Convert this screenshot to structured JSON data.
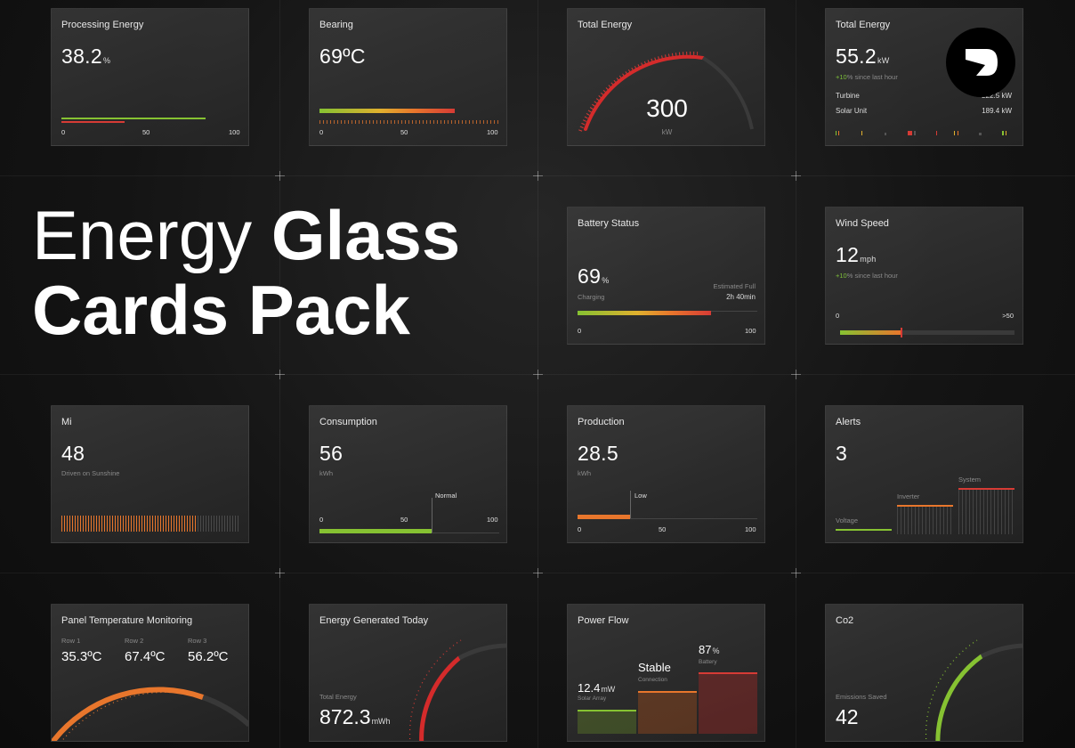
{
  "hero": {
    "line1_thin": "Energy",
    "line1_bold": "Glass",
    "line2": "Cards Pack"
  },
  "colors": {
    "green": "#86c232",
    "orange": "#e8762c",
    "red": "#d63b35",
    "bg": "#101010"
  },
  "processing_energy": {
    "title": "Processing Energy",
    "value": "38.2",
    "unit": "%",
    "level": 0.382,
    "ticks": [
      "0",
      "50",
      "100"
    ]
  },
  "bearing": {
    "title": "Bearing",
    "value": "69ºC",
    "ticks": [
      "0",
      "50",
      "100"
    ]
  },
  "total_energy_gauge": {
    "title": "Total Energy",
    "value": "300",
    "unit": "kW"
  },
  "total_energy": {
    "title": "Total Energy",
    "value": "55.2",
    "unit": "kW",
    "delta": "+10",
    "delta_text": "% since last hour",
    "rows": [
      {
        "label": "Turbine",
        "value": "222.5 kW"
      },
      {
        "label": "Solar Unit",
        "value": "189.4 kW"
      }
    ]
  },
  "battery": {
    "title": "Battery Status",
    "value": "69",
    "unit": "%",
    "status": "Charging",
    "eta_label": "Estimated Full",
    "eta_value": "2h 40min",
    "level": 0.69,
    "ticks": [
      "0",
      "100"
    ]
  },
  "wind": {
    "title": "Wind Speed",
    "value": "12",
    "unit": "mph",
    "delta": "+10",
    "delta_text": "% since last hour",
    "ticks": [
      "0",
      ">50"
    ]
  },
  "mi": {
    "title": "Mi",
    "value": "48",
    "subtitle": "Driven on Sunshine"
  },
  "consumption": {
    "title": "Consumption",
    "value": "56",
    "unit": "kWh",
    "marker": "Normal",
    "level": 0.56,
    "ticks": [
      "0",
      "50",
      "100"
    ]
  },
  "production": {
    "title": "Production",
    "value": "28.5",
    "unit": "kWh",
    "marker": "Low",
    "level": 0.285,
    "ticks": [
      "0",
      "50",
      "100"
    ]
  },
  "alerts": {
    "title": "Alerts",
    "value": "3",
    "labels": [
      "Voltage",
      "Inverter",
      "System"
    ]
  },
  "panel_temp": {
    "title": "Panel Temperature Monitoring",
    "rows": [
      {
        "label": "Row 1",
        "value": "35.3ºC"
      },
      {
        "label": "Row 2",
        "value": "67.4ºC"
      },
      {
        "label": "Row 3",
        "value": "56.2ºC"
      }
    ]
  },
  "energy_today": {
    "title": "Energy Generated Today",
    "label": "Total Energy",
    "value": "872.3",
    "unit": "mWh"
  },
  "power_flow": {
    "title": "Power Flow",
    "solar_value": "12.4",
    "solar_unit": "mW",
    "solar_label": "Solar Array",
    "stable": "Stable",
    "stable_label": "Connection",
    "battery_value": "87",
    "battery_unit": "%",
    "battery_label": "Battery"
  },
  "co2": {
    "title": "Co2",
    "label": "Emissions Saved",
    "value": "42"
  }
}
